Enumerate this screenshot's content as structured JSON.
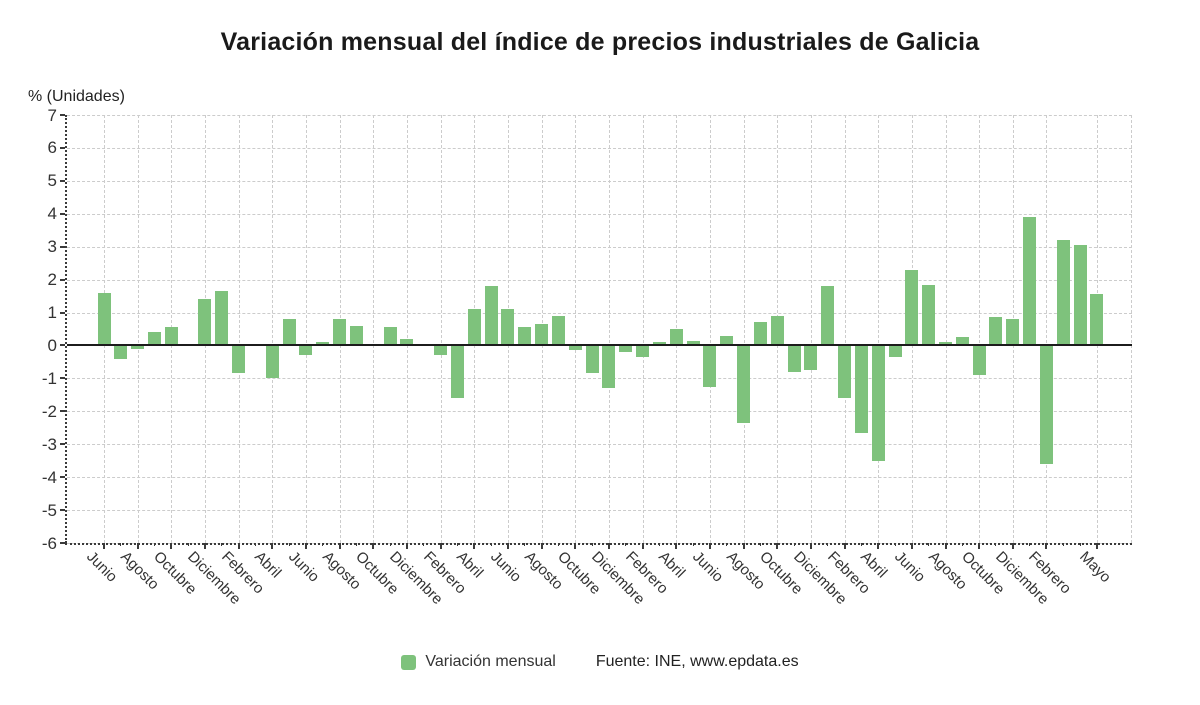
{
  "title": "Variación mensual del índice de precios industriales de Galicia",
  "y_axis_title": "% (Unidades)",
  "legend": {
    "series_label": "Variación mensual",
    "source_label": "Fuente: INE, www.epdata.es"
  },
  "colors": {
    "bar": "#7ec27c",
    "grid": "#cccccc",
    "zero_line": "#1c1c1c",
    "axis": "#3a3a3a",
    "text": "#333333",
    "title_text": "#1a1a1a"
  },
  "chart_data": {
    "type": "bar",
    "title": "Variación mensual del índice de precios industriales de Galicia",
    "ylabel": "% (Unidades)",
    "ylim": [
      -6,
      7
    ],
    "y_ticks": [
      7,
      6,
      5,
      4,
      3,
      2,
      1,
      0,
      -1,
      -2,
      -3,
      -4,
      -5,
      -6
    ],
    "grid": true,
    "legend_position": "bottom",
    "tick_labels": [
      "Junio",
      "Agosto",
      "Octubre",
      "Diciembre",
      "Febrero",
      "Abril",
      "Junio",
      "Agosto",
      "Octubre",
      "Diciembre",
      "Febrero",
      "Abril",
      "Junio",
      "Agosto",
      "Octubre",
      "Diciembre",
      "Febrero",
      "Abril",
      "Junio",
      "Agosto",
      "Octubre",
      "Diciembre",
      "Febrero",
      "Abril",
      "Junio",
      "Agosto",
      "Octubre",
      "Diciembre",
      "Febrero",
      "Mayo"
    ],
    "series": [
      {
        "name": "Variación mensual",
        "values": [
          1.6,
          -0.4,
          -0.1,
          0.4,
          0.55,
          0.0,
          1.4,
          1.65,
          -0.85,
          0.0,
          -1.0,
          0.8,
          -0.3,
          0.1,
          0.8,
          0.6,
          0.0,
          0.55,
          0.2,
          0.0,
          -0.3,
          -1.6,
          1.1,
          1.8,
          1.1,
          0.55,
          0.65,
          0.9,
          -0.15,
          -0.85,
          -1.3,
          -0.2,
          -0.35,
          0.1,
          0.5,
          0.15,
          -1.25,
          0.3,
          -2.35,
          0.7,
          0.9,
          -0.8,
          -0.75,
          1.8,
          -1.6,
          -2.65,
          -3.5,
          -0.35,
          2.3,
          1.85,
          0.1,
          0.25,
          -0.9,
          0.85,
          0.8,
          3.9,
          -3.6,
          3.2,
          3.05,
          1.55
        ]
      }
    ]
  }
}
